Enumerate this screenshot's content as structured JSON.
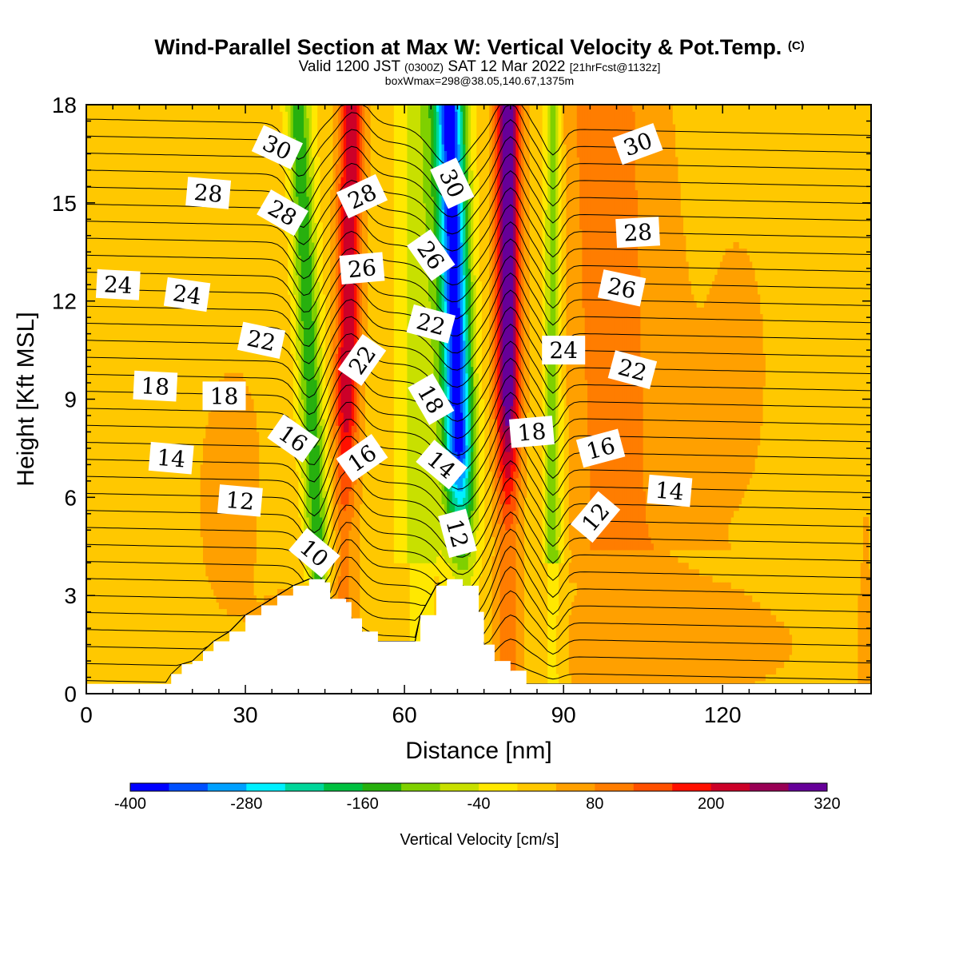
{
  "titles": {
    "main": "Wind-Parallel Section at Max W: Vertical Velocity & Pot.Temp.",
    "copyright": "(C)",
    "valid_pre": "Valid 1200 JST",
    "valid_utc": "(0300Z)",
    "valid_date": "SAT 12 Mar 2022",
    "valid_fcst": "[21hrFcst@1132z]",
    "box": "boxWmax=298@38.05,140.67,1375m"
  },
  "chart_data": {
    "type": "heatmap",
    "xlabel": "Distance [nm]",
    "ylabel": "Height [Kft MSL]",
    "xlim": [
      0,
      148
    ],
    "ylim": [
      0,
      18
    ],
    "x_ticks": [
      0,
      30,
      60,
      90,
      120
    ],
    "y_ticks": [
      0,
      3,
      6,
      9,
      12,
      15,
      18
    ],
    "colorbar": {
      "label": "Vertical Velocity [cm/s]",
      "min": -400,
      "max": 320,
      "step": 40,
      "tick_labels": [
        "-400",
        "-280",
        "-160",
        "-40",
        "80",
        "200",
        "320"
      ],
      "colors": [
        "#0000ff",
        "#0050ff",
        "#00a0ff",
        "#00f0ff",
        "#00d69a",
        "#00c040",
        "#27b00e",
        "#7fd000",
        "#c8e000",
        "#ffe800",
        "#ffc800",
        "#ffa000",
        "#ff7d00",
        "#ff5000",
        "#ff1000",
        "#cc0028",
        "#990055",
        "#660099"
      ]
    },
    "terrain": [
      [
        0,
        0.3
      ],
      [
        15,
        0.3
      ],
      [
        16,
        0.6
      ],
      [
        18,
        0.9
      ],
      [
        20,
        1.0
      ],
      [
        22,
        1.3
      ],
      [
        24,
        1.6
      ],
      [
        27,
        1.9
      ],
      [
        30,
        2.4
      ],
      [
        33,
        2.7
      ],
      [
        36,
        3.0
      ],
      [
        39,
        3.3
      ],
      [
        42,
        3.5
      ],
      [
        45,
        3.4
      ],
      [
        46,
        2.9
      ],
      [
        49,
        2.8
      ],
      [
        50,
        2.3
      ],
      [
        52,
        1.9
      ],
      [
        55,
        1.6
      ],
      [
        62,
        1.6
      ],
      [
        63,
        2.4
      ],
      [
        66,
        3.3
      ],
      [
        68,
        3.5
      ],
      [
        71,
        3.3
      ],
      [
        74,
        2.5
      ],
      [
        75,
        1.5
      ],
      [
        77,
        1.0
      ],
      [
        80,
        0.7
      ],
      [
        83,
        0.3
      ],
      [
        148,
        0.3
      ]
    ],
    "updraft_bands": [
      {
        "name": "red",
        "w_cm_s": 200,
        "base_x": 46,
        "top_x": 49
      },
      {
        "name": "purple",
        "w_cm_s": 298,
        "base_x": 77,
        "top_x": 80
      }
    ],
    "downdraft_bands": [
      {
        "name": "green",
        "w_cm_s": -160,
        "base_x": 44,
        "top_x": 40
      },
      {
        "name": "blue",
        "w_cm_s": -400,
        "base_x": 73,
        "top_x": 68
      },
      {
        "name": "green",
        "w_cm_s": -120,
        "base_x": 88,
        "top_x": 88
      }
    ],
    "theta_contour_labels": [
      {
        "text": "30",
        "x": 36,
        "y": 16.7,
        "angle": 25
      },
      {
        "text": "28",
        "x": 23,
        "y": 15.3,
        "angle": 5
      },
      {
        "text": "28",
        "x": 37,
        "y": 14.7,
        "angle": 30
      },
      {
        "text": "30",
        "x": 69,
        "y": 15.6,
        "angle": 65
      },
      {
        "text": "28",
        "x": 52,
        "y": 15.2,
        "angle": -25
      },
      {
        "text": "30",
        "x": 104,
        "y": 16.8,
        "angle": -20
      },
      {
        "text": "28",
        "x": 104,
        "y": 14.1,
        "angle": -3
      },
      {
        "text": "26",
        "x": 52,
        "y": 13.0,
        "angle": -5
      },
      {
        "text": "26",
        "x": 65,
        "y": 13.4,
        "angle": 55
      },
      {
        "text": "26",
        "x": 101,
        "y": 12.4,
        "angle": 12
      },
      {
        "text": "24",
        "x": 6,
        "y": 12.5,
        "angle": 3
      },
      {
        "text": "24",
        "x": 19,
        "y": 12.2,
        "angle": 8
      },
      {
        "text": "22",
        "x": 33,
        "y": 10.8,
        "angle": 12
      },
      {
        "text": "22",
        "x": 65,
        "y": 11.3,
        "angle": 15
      },
      {
        "text": "22",
        "x": 52,
        "y": 10.2,
        "angle": -55
      },
      {
        "text": "24",
        "x": 90,
        "y": 10.5,
        "angle": 0
      },
      {
        "text": "22",
        "x": 103,
        "y": 9.9,
        "angle": 15
      },
      {
        "text": "18",
        "x": 13,
        "y": 9.4,
        "angle": 3
      },
      {
        "text": "18",
        "x": 26,
        "y": 9.1,
        "angle": 0
      },
      {
        "text": "18",
        "x": 65,
        "y": 9.0,
        "angle": 60
      },
      {
        "text": "16",
        "x": 39,
        "y": 7.8,
        "angle": 35
      },
      {
        "text": "16",
        "x": 52,
        "y": 7.2,
        "angle": -35
      },
      {
        "text": "18",
        "x": 84,
        "y": 8.0,
        "angle": -5
      },
      {
        "text": "16",
        "x": 97,
        "y": 7.5,
        "angle": -15
      },
      {
        "text": "14",
        "x": 16,
        "y": 7.2,
        "angle": 5
      },
      {
        "text": "14",
        "x": 67,
        "y": 7.0,
        "angle": 40
      },
      {
        "text": "14",
        "x": 110,
        "y": 6.2,
        "angle": 5
      },
      {
        "text": "12",
        "x": 29,
        "y": 5.9,
        "angle": 5
      },
      {
        "text": "12",
        "x": 70,
        "y": 4.9,
        "angle": 75
      },
      {
        "text": "12",
        "x": 96,
        "y": 5.4,
        "angle": -50
      },
      {
        "text": "10",
        "x": 43,
        "y": 4.3,
        "angle": 40
      }
    ]
  }
}
